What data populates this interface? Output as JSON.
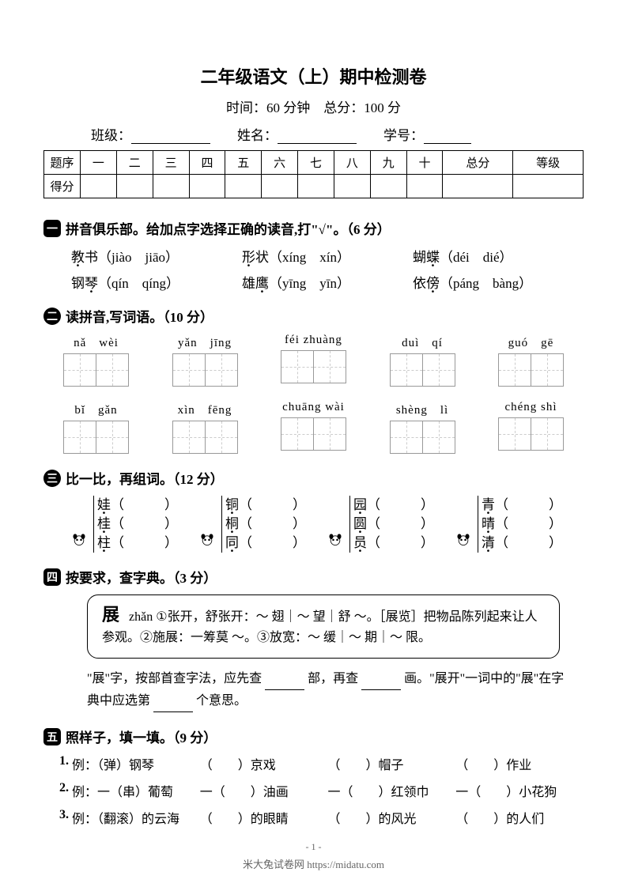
{
  "header": {
    "title": "二年级语文（上）期中检测卷",
    "time_label": "时间：",
    "time_value": "60 分钟",
    "total_label": "总分：",
    "total_value": "100 分",
    "class_label": "班级：",
    "name_label": "姓名：",
    "id_label": "学号："
  },
  "score_table": {
    "row1_label": "题序",
    "row2_label": "得分",
    "columns": [
      "一",
      "二",
      "三",
      "四",
      "五",
      "六",
      "七",
      "八",
      "九",
      "十",
      "总分",
      "等级"
    ]
  },
  "q1": {
    "number": "一",
    "title": "拼音俱乐部。给加点字选择正确的读音,打\"√\"。（6 分）",
    "rows": [
      [
        {
          "char": "教书",
          "dot_idx": 0,
          "options": "（jiào　jiāo）"
        },
        {
          "char": "形状",
          "dot_idx": 0,
          "options": "（xíng　xín）"
        },
        {
          "char": "蝴蝶",
          "dot_idx": 1,
          "options": "（déi　dié）"
        }
      ],
      [
        {
          "char": "钢琴",
          "dot_idx": 1,
          "options": "（qín　qíng）"
        },
        {
          "char": "雄鹰",
          "dot_idx": 1,
          "options": "（yīng　yīn）"
        },
        {
          "char": "依傍",
          "dot_idx": 1,
          "options": "（páng　bàng）"
        }
      ]
    ]
  },
  "q2": {
    "number": "二",
    "title": "读拼音,写词语。（10 分）",
    "rows": [
      [
        "nǎ　wèi",
        "yǎn　jīng",
        "féi zhuàng",
        "duì　qí",
        "guó　gē"
      ],
      [
        "bǐ　gǎn",
        "xìn　fēng",
        "chuāng wài",
        "shèng　lì",
        "chéng shì"
      ]
    ]
  },
  "q3": {
    "number": "三",
    "title": "比一比，再组词。（12 分）",
    "groups": [
      [
        "娃",
        "桂",
        "柱"
      ],
      [
        "铜",
        "桐",
        "同"
      ],
      [
        "园",
        "圆",
        "员"
      ],
      [
        "青",
        "晴",
        "清"
      ]
    ]
  },
  "q4": {
    "number": "四",
    "title": "按要求，查字典。（3 分）",
    "entry_char": "展",
    "entry_text": "zhǎn ①张开，舒张开：～ 翅｜～ 望｜舒 ～。［展览］把物品陈列起来让人参观。②施展：一筹莫 ～。③放宽：～ 缓｜～ 期｜～ 限。",
    "sentence_1": "\"展\"字，按部首查字法，应先查",
    "sentence_2": "部，再查",
    "sentence_3": "画。\"展开\"一词中的\"展\"在字典中应选第",
    "sentence_4": "个意思。"
  },
  "q5": {
    "number": "五",
    "title": "照样子，填一填。（9 分）",
    "lines": [
      {
        "n": "1.",
        "example": "例：（弹）钢琴",
        "parts": [
          "（　　）京戏",
          "（　　）帽子",
          "（　　）作业"
        ]
      },
      {
        "n": "2.",
        "example": "例：一（串）葡萄",
        "parts": [
          "一（　　）油画",
          "一（　　）红领巾",
          "一（　　）小花狗"
        ]
      },
      {
        "n": "3.",
        "example": "例：（翻滚）的云海",
        "parts": [
          "（　　）的眼睛",
          "（　　）的风光",
          "（　　）的人们"
        ]
      }
    ]
  },
  "footer": {
    "page": "- 1 -",
    "watermark": "米大兔试卷网 https://midatu.com"
  }
}
